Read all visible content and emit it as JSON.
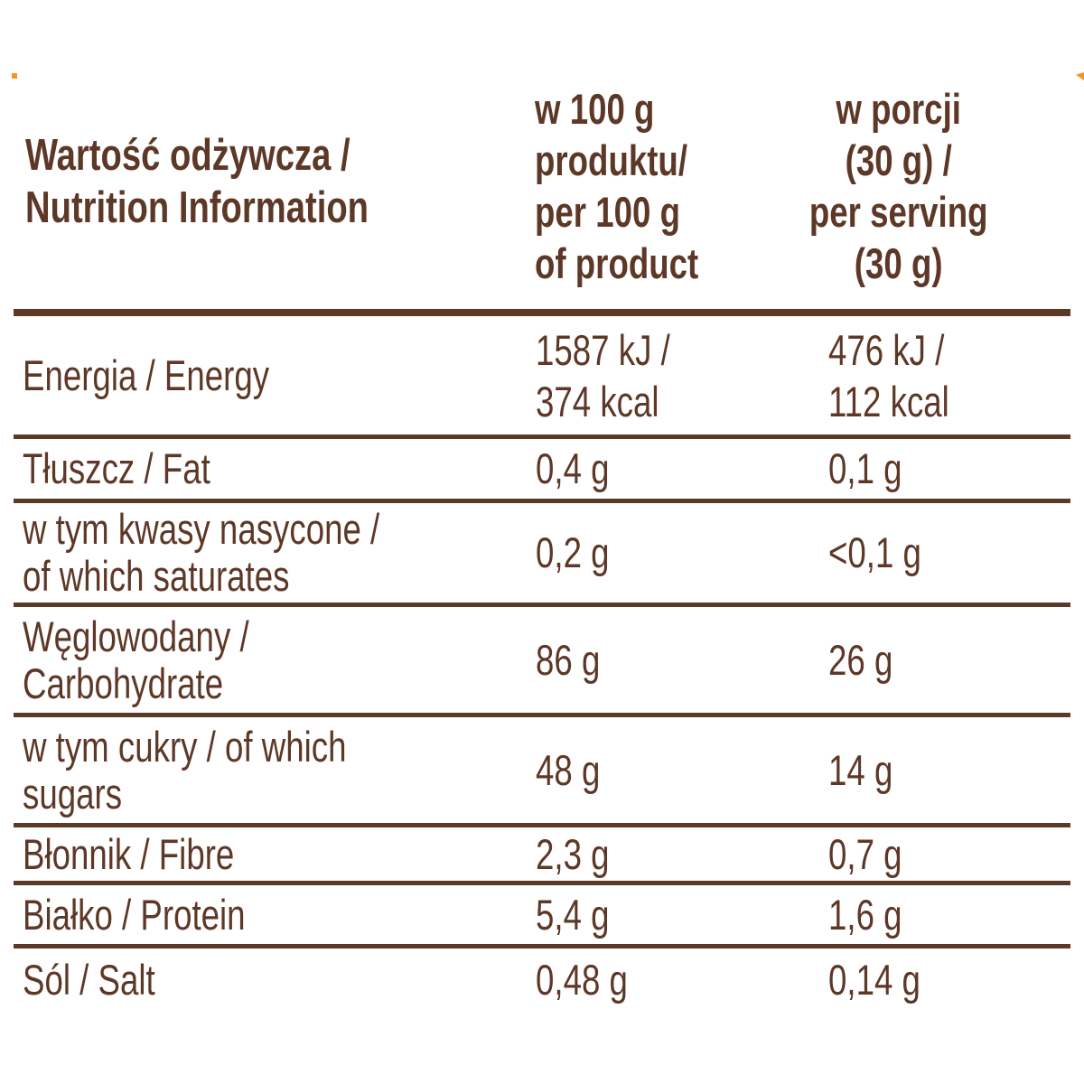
{
  "accent_color": "#5d3827",
  "artifact_color": "#f7941e",
  "header": {
    "title": "Wartość odżywcza /\nNutrition Information",
    "col_per_100g": "w 100 g\nproduktu/\nper 100 g\nof product",
    "col_per_serving": "w porcji\n(30 g) /\nper serving\n(30 g)"
  },
  "rows": [
    {
      "label": "Energia / Energy",
      "per_100g": "1587 kJ /\n374 kcal",
      "per_serving": "476 kJ /\n112 kcal"
    },
    {
      "label": "Tłuszcz / Fat",
      "per_100g": "0,4 g",
      "per_serving": "0,1 g"
    },
    {
      "label": "w tym kwasy nasycone /\nof which saturates",
      "per_100g": "0,2 g",
      "per_serving": "<0,1 g"
    },
    {
      "label": "Węglowodany /\nCarbohydrate",
      "per_100g": "86 g",
      "per_serving": "26 g"
    },
    {
      "label": "w tym cukry / of which\nsugars",
      "per_100g": "48 g",
      "per_serving": "14 g"
    },
    {
      "label": "Błonnik / Fibre",
      "per_100g": "2,3 g",
      "per_serving": "0,7 g"
    },
    {
      "label": "Białko / Protein",
      "per_100g": "5,4 g",
      "per_serving": "1,6 g"
    },
    {
      "label": "Sól / Salt",
      "per_100g": "0,48 g",
      "per_serving": "0,14 g"
    }
  ]
}
